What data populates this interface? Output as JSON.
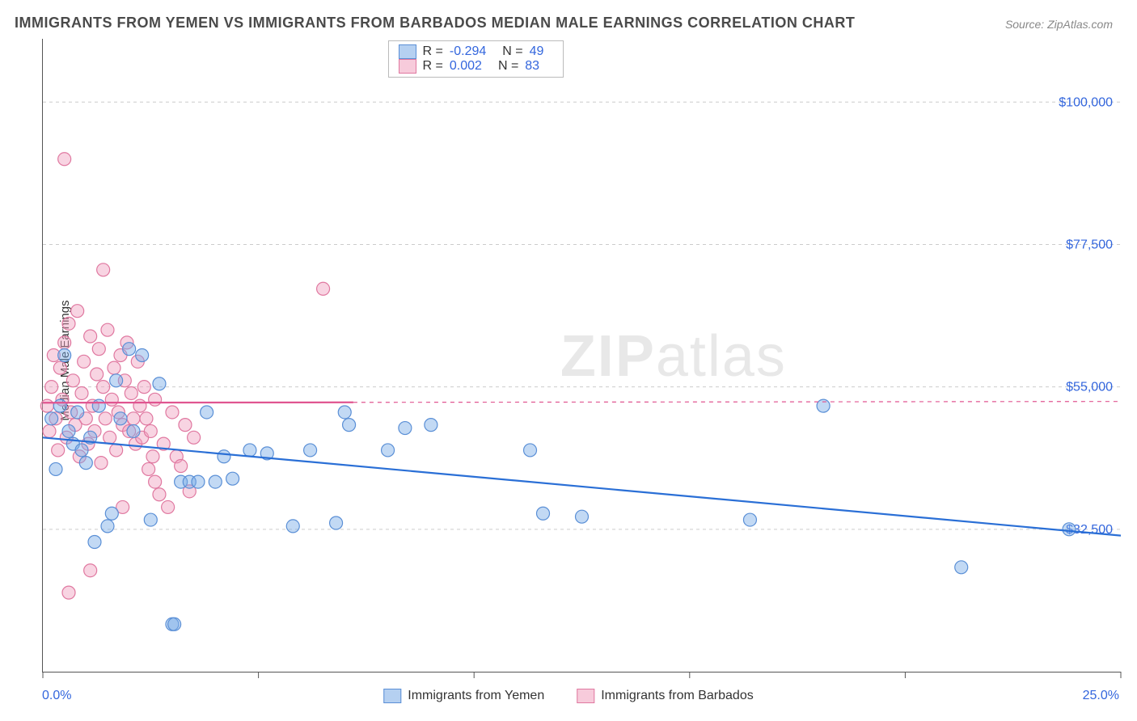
{
  "title": "IMMIGRANTS FROM YEMEN VS IMMIGRANTS FROM BARBADOS MEDIAN MALE EARNINGS CORRELATION CHART",
  "source": "Source: ZipAtlas.com",
  "ylabel": "Median Male Earnings",
  "watermark_a": "ZIP",
  "watermark_b": "atlas",
  "chart": {
    "type": "scatter",
    "xlim": [
      0,
      25
    ],
    "ylim": [
      10000,
      110000
    ],
    "x_min_label": "0.0%",
    "x_max_label": "25.0%",
    "x_ticks": [
      0,
      5,
      10,
      15,
      20,
      25
    ],
    "y_gridlines": [
      32500,
      55000,
      77500,
      100000
    ],
    "y_labels": [
      "$32,500",
      "$55,000",
      "$77,500",
      "$100,000"
    ],
    "background_color": "#ffffff",
    "grid_color": "#cccccc",
    "axis_color": "#555555",
    "tick_label_color": "#3366dd",
    "marker_radius": 8,
    "marker_stroke_width": 1.2,
    "line_width": 2.2
  },
  "series": [
    {
      "name": "Immigrants from Yemen",
      "color_fill": "rgba(120,170,230,0.45)",
      "color_stroke": "#5a8fd6",
      "line_color": "#2a6fd6",
      "R": "-0.294",
      "N": "49",
      "trend": {
        "x1": 0,
        "y1": 47000,
        "x2": 25,
        "y2": 31500,
        "solid_until_x": 25
      },
      "points": [
        [
          0.2,
          50000
        ],
        [
          0.3,
          42000
        ],
        [
          0.4,
          52000
        ],
        [
          0.5,
          60000
        ],
        [
          0.6,
          48000
        ],
        [
          0.7,
          46000
        ],
        [
          0.8,
          51000
        ],
        [
          0.9,
          45000
        ],
        [
          1.0,
          43000
        ],
        [
          1.1,
          47000
        ],
        [
          1.2,
          30500
        ],
        [
          1.3,
          52000
        ],
        [
          1.5,
          33000
        ],
        [
          1.6,
          35000
        ],
        [
          1.7,
          56000
        ],
        [
          1.8,
          50000
        ],
        [
          2.0,
          61000
        ],
        [
          2.1,
          48000
        ],
        [
          2.3,
          60000
        ],
        [
          2.5,
          34000
        ],
        [
          2.7,
          55500
        ],
        [
          3.0,
          17500
        ],
        [
          3.05,
          17500
        ],
        [
          3.2,
          40000
        ],
        [
          3.4,
          40000
        ],
        [
          3.6,
          40000
        ],
        [
          3.8,
          51000
        ],
        [
          4.0,
          40000
        ],
        [
          4.2,
          44000
        ],
        [
          4.4,
          40500
        ],
        [
          4.8,
          45000
        ],
        [
          5.2,
          44500
        ],
        [
          5.8,
          33000
        ],
        [
          6.2,
          45000
        ],
        [
          6.8,
          33500
        ],
        [
          7.0,
          51000
        ],
        [
          7.1,
          49000
        ],
        [
          8.0,
          45000
        ],
        [
          8.4,
          48500
        ],
        [
          9.0,
          49000
        ],
        [
          11.3,
          45000
        ],
        [
          11.6,
          35000
        ],
        [
          12.5,
          34500
        ],
        [
          16.4,
          34000
        ],
        [
          18.1,
          52000
        ],
        [
          21.3,
          26500
        ],
        [
          23.8,
          32500
        ]
      ]
    },
    {
      "name": "Immigrants from Barbados",
      "color_fill": "rgba(240,160,190,0.45)",
      "color_stroke": "#e078a0",
      "line_color": "#e05590",
      "R": "0.002",
      "N": "83",
      "trend": {
        "x1": 0,
        "y1": 52500,
        "x2": 25,
        "y2": 52700,
        "solid_until_x": 7.2
      },
      "points": [
        [
          0.1,
          52000
        ],
        [
          0.15,
          48000
        ],
        [
          0.2,
          55000
        ],
        [
          0.25,
          60000
        ],
        [
          0.3,
          50000
        ],
        [
          0.35,
          45000
        ],
        [
          0.4,
          58000
        ],
        [
          0.45,
          53000
        ],
        [
          0.5,
          62000
        ],
        [
          0.5,
          91000
        ],
        [
          0.55,
          47000
        ],
        [
          0.6,
          65000
        ],
        [
          0.6,
          22500
        ],
        [
          0.65,
          51000
        ],
        [
          0.7,
          56000
        ],
        [
          0.75,
          49000
        ],
        [
          0.8,
          67000
        ],
        [
          0.85,
          44000
        ],
        [
          0.9,
          54000
        ],
        [
          0.95,
          59000
        ],
        [
          1.0,
          50000
        ],
        [
          1.05,
          46000
        ],
        [
          1.1,
          63000
        ],
        [
          1.1,
          26000
        ],
        [
          1.15,
          52000
        ],
        [
          1.2,
          48000
        ],
        [
          1.25,
          57000
        ],
        [
          1.3,
          61000
        ],
        [
          1.35,
          43000
        ],
        [
          1.4,
          55000
        ],
        [
          1.4,
          73500
        ],
        [
          1.45,
          50000
        ],
        [
          1.5,
          64000
        ],
        [
          1.55,
          47000
        ],
        [
          1.6,
          53000
        ],
        [
          1.65,
          58000
        ],
        [
          1.7,
          45000
        ],
        [
          1.75,
          51000
        ],
        [
          1.8,
          60000
        ],
        [
          1.85,
          49000
        ],
        [
          1.85,
          36000
        ],
        [
          1.9,
          56000
        ],
        [
          1.95,
          62000
        ],
        [
          2.0,
          48000
        ],
        [
          2.05,
          54000
        ],
        [
          2.1,
          50000
        ],
        [
          2.15,
          46000
        ],
        [
          2.2,
          59000
        ],
        [
          2.25,
          52000
        ],
        [
          2.3,
          47000
        ],
        [
          2.35,
          55000
        ],
        [
          2.4,
          50000
        ],
        [
          2.45,
          42000
        ],
        [
          2.5,
          48000
        ],
        [
          2.55,
          44000
        ],
        [
          2.6,
          40000
        ],
        [
          2.6,
          53000
        ],
        [
          2.7,
          38000
        ],
        [
          2.8,
          46000
        ],
        [
          2.9,
          36000
        ],
        [
          3.0,
          51000
        ],
        [
          3.1,
          44000
        ],
        [
          3.2,
          42500
        ],
        [
          3.3,
          49000
        ],
        [
          3.4,
          38500
        ],
        [
          3.5,
          47000
        ],
        [
          6.5,
          70500
        ]
      ]
    }
  ],
  "legend": {
    "items": [
      {
        "label": "Immigrants from Yemen",
        "fill": "rgba(120,170,230,0.55)",
        "stroke": "#5a8fd6"
      },
      {
        "label": "Immigrants from Barbados",
        "fill": "rgba(240,160,190,0.55)",
        "stroke": "#e078a0"
      }
    ]
  }
}
